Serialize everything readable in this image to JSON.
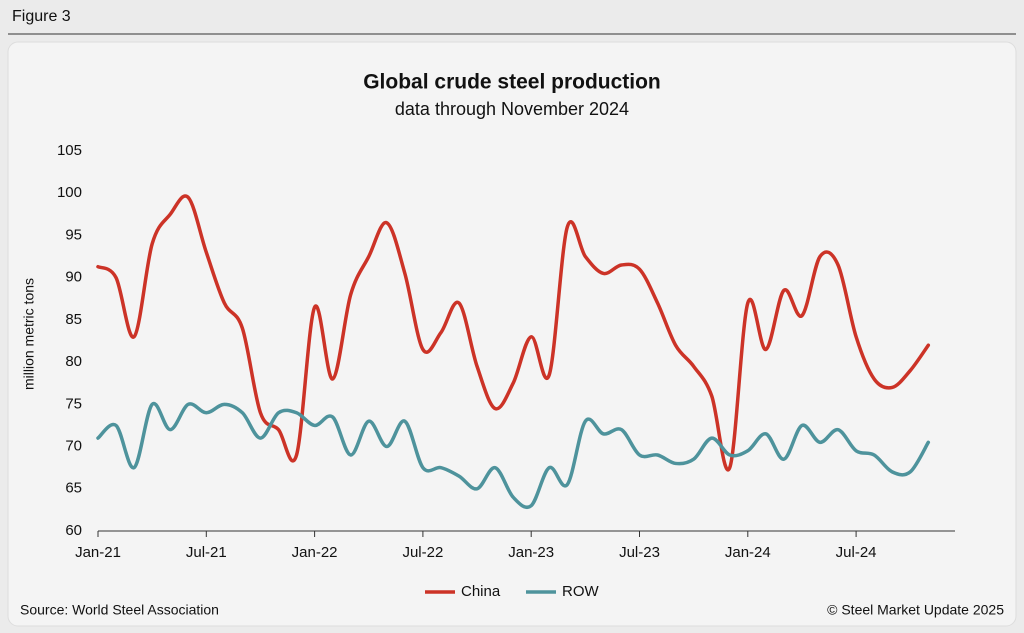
{
  "header": "Figure 3",
  "chart_data": {
    "type": "line",
    "title": "Global crude steel production",
    "subtitle": "data through November 2024",
    "y_label": "million metric tons",
    "source": "Source: World Steel Association",
    "copyright": "© Steel Market Update 2025",
    "categories": [
      "Jan-21",
      null,
      null,
      null,
      null,
      null,
      "Jul-21",
      null,
      null,
      null,
      null,
      null,
      "Jan-22",
      null,
      null,
      null,
      null,
      null,
      "Jul-22",
      null,
      null,
      null,
      null,
      null,
      "Jan-23",
      null,
      null,
      null,
      null,
      null,
      "Jul-23",
      null,
      null,
      null,
      null,
      null,
      "Jan-24",
      null,
      null,
      null,
      null,
      null,
      "Jul-24",
      null,
      null,
      null,
      null
    ],
    "ylim": [
      60,
      105
    ],
    "yticks": [
      60,
      65,
      70,
      75,
      80,
      85,
      90,
      95,
      100,
      105
    ],
    "series": [
      {
        "name": "China",
        "color": "#cc3327",
        "values": [
          91.3,
          90,
          83,
          94,
          97.5,
          99.5,
          93,
          87,
          84,
          74,
          72,
          69,
          86.5,
          78,
          88,
          92.5,
          96.5,
          90.5,
          81.5,
          83.5,
          87,
          79.5,
          74.5,
          77.5,
          83,
          78.5,
          96,
          92.5,
          90.5,
          91.5,
          91,
          87,
          82,
          79.5,
          76,
          67.5,
          87,
          81.5,
          88.5,
          85.5,
          92.5,
          91.5,
          83,
          78,
          77,
          79,
          82
        ]
      },
      {
        "name": "ROW",
        "color": "#4e939c",
        "values": [
          71,
          72.5,
          67.5,
          75,
          72,
          75,
          74,
          75,
          74,
          71,
          74,
          74,
          72.5,
          73.5,
          69,
          73,
          70,
          73,
          67.5,
          67.5,
          66.5,
          65,
          67.5,
          64,
          63,
          67.5,
          65.5,
          73,
          71.5,
          72,
          69,
          69,
          68,
          68.5,
          71,
          69,
          69.5,
          71.5,
          68.5,
          72.5,
          70.5,
          72,
          69.5,
          69,
          67,
          67,
          70.5
        ]
      }
    ]
  }
}
